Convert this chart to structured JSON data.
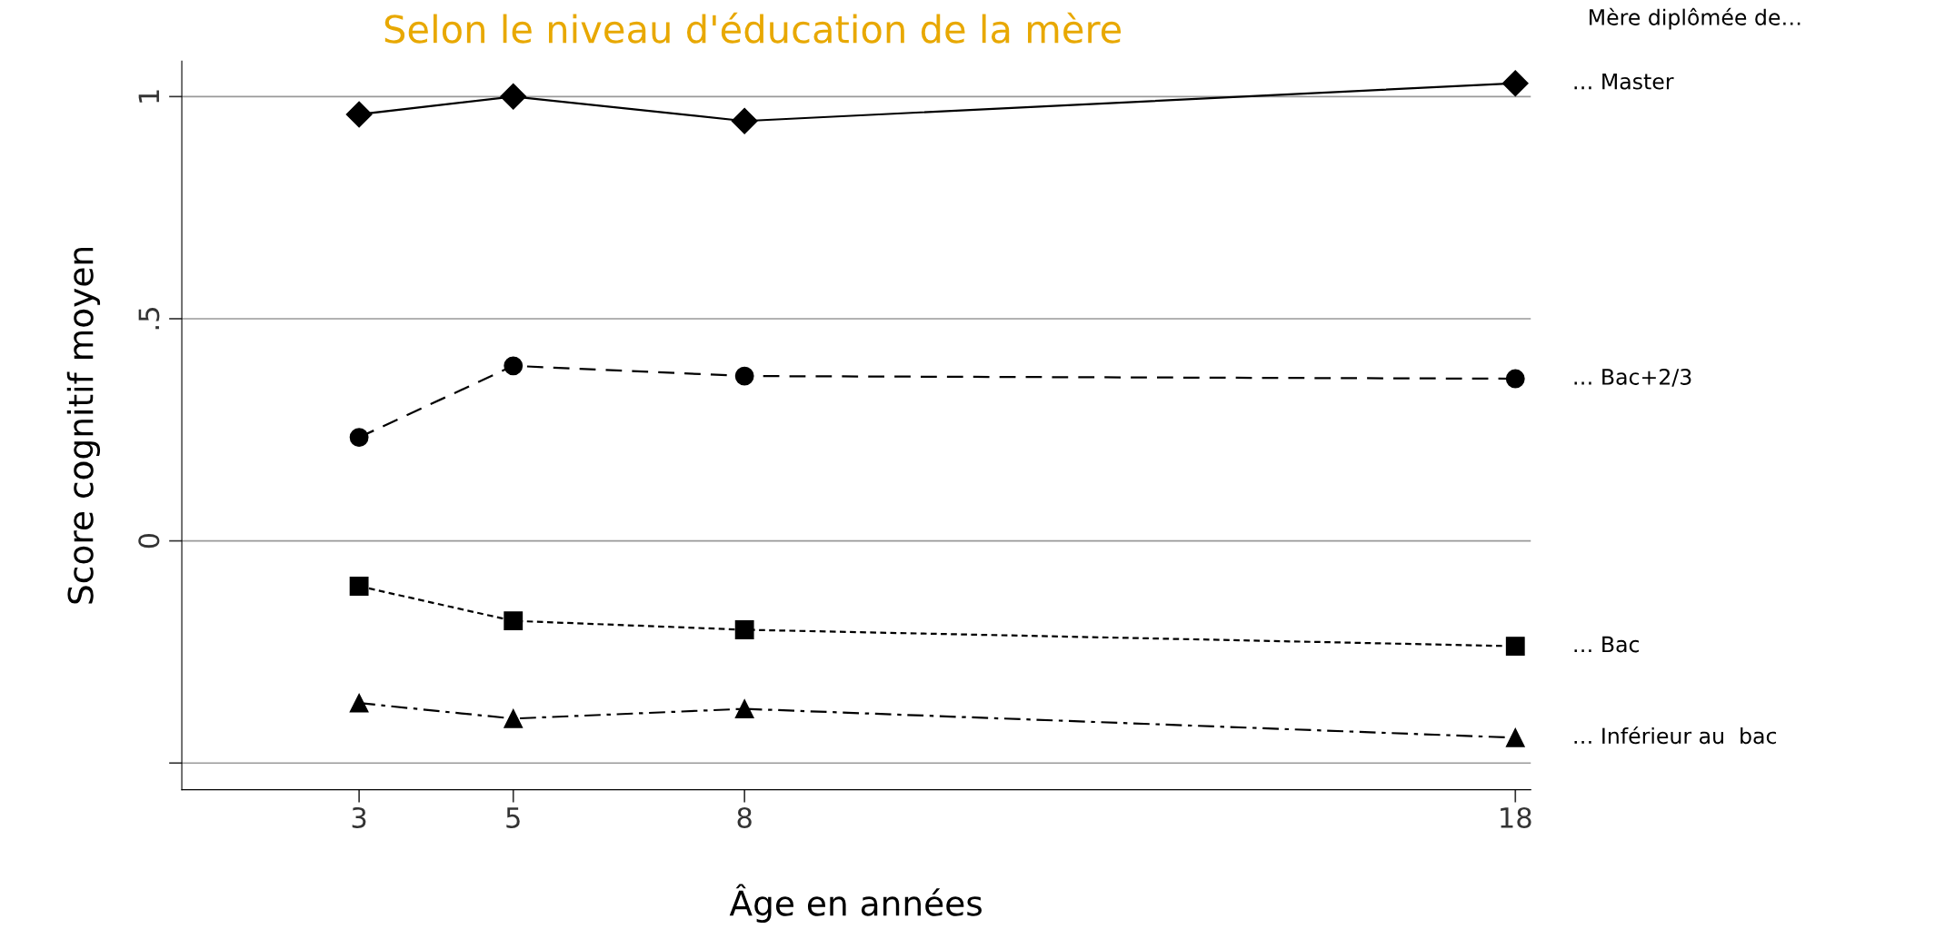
{
  "chart_data": {
    "type": "line",
    "title": "Selon le niveau d'éducation de la mère",
    "xlabel": "Âge en années",
    "ylabel": "Score cognitif moyen",
    "legend_title": "Mère diplômée de…",
    "x": [
      3,
      5,
      8,
      18
    ],
    "series": [
      {
        "name": "… Master",
        "color": "#000000",
        "marker": "diamond",
        "line_style": "solid",
        "values": [
          0.96,
          1.0,
          0.945,
          1.03
        ]
      },
      {
        "name": "… Bac+2/3",
        "color": "#000000",
        "marker": "circle",
        "line_style": "dashed",
        "values": [
          0.233,
          0.394,
          0.371,
          0.365
        ]
      },
      {
        "name": "… Bac",
        "color": "#000000",
        "marker": "square",
        "line_style": "dotted",
        "values": [
          -0.102,
          -0.18,
          -0.2,
          -0.237
        ]
      },
      {
        "name": "… Inférieur au  bac",
        "color": "#000000",
        "marker": "triangle",
        "line_style": "dashdot",
        "values": [
          -0.365,
          -0.4,
          -0.378,
          -0.443
        ]
      }
    ],
    "xlim": [
      0.7,
      18.2
    ],
    "xticks": [
      3,
      5,
      8,
      18
    ],
    "ylim": [
      -0.56,
      1.08
    ],
    "yticks": [
      {
        "value": -0.5,
        "label": null
      },
      0,
      {
        "value": 0.5,
        "label": ".5"
      },
      1
    ],
    "grid": "y",
    "legend": "right"
  }
}
